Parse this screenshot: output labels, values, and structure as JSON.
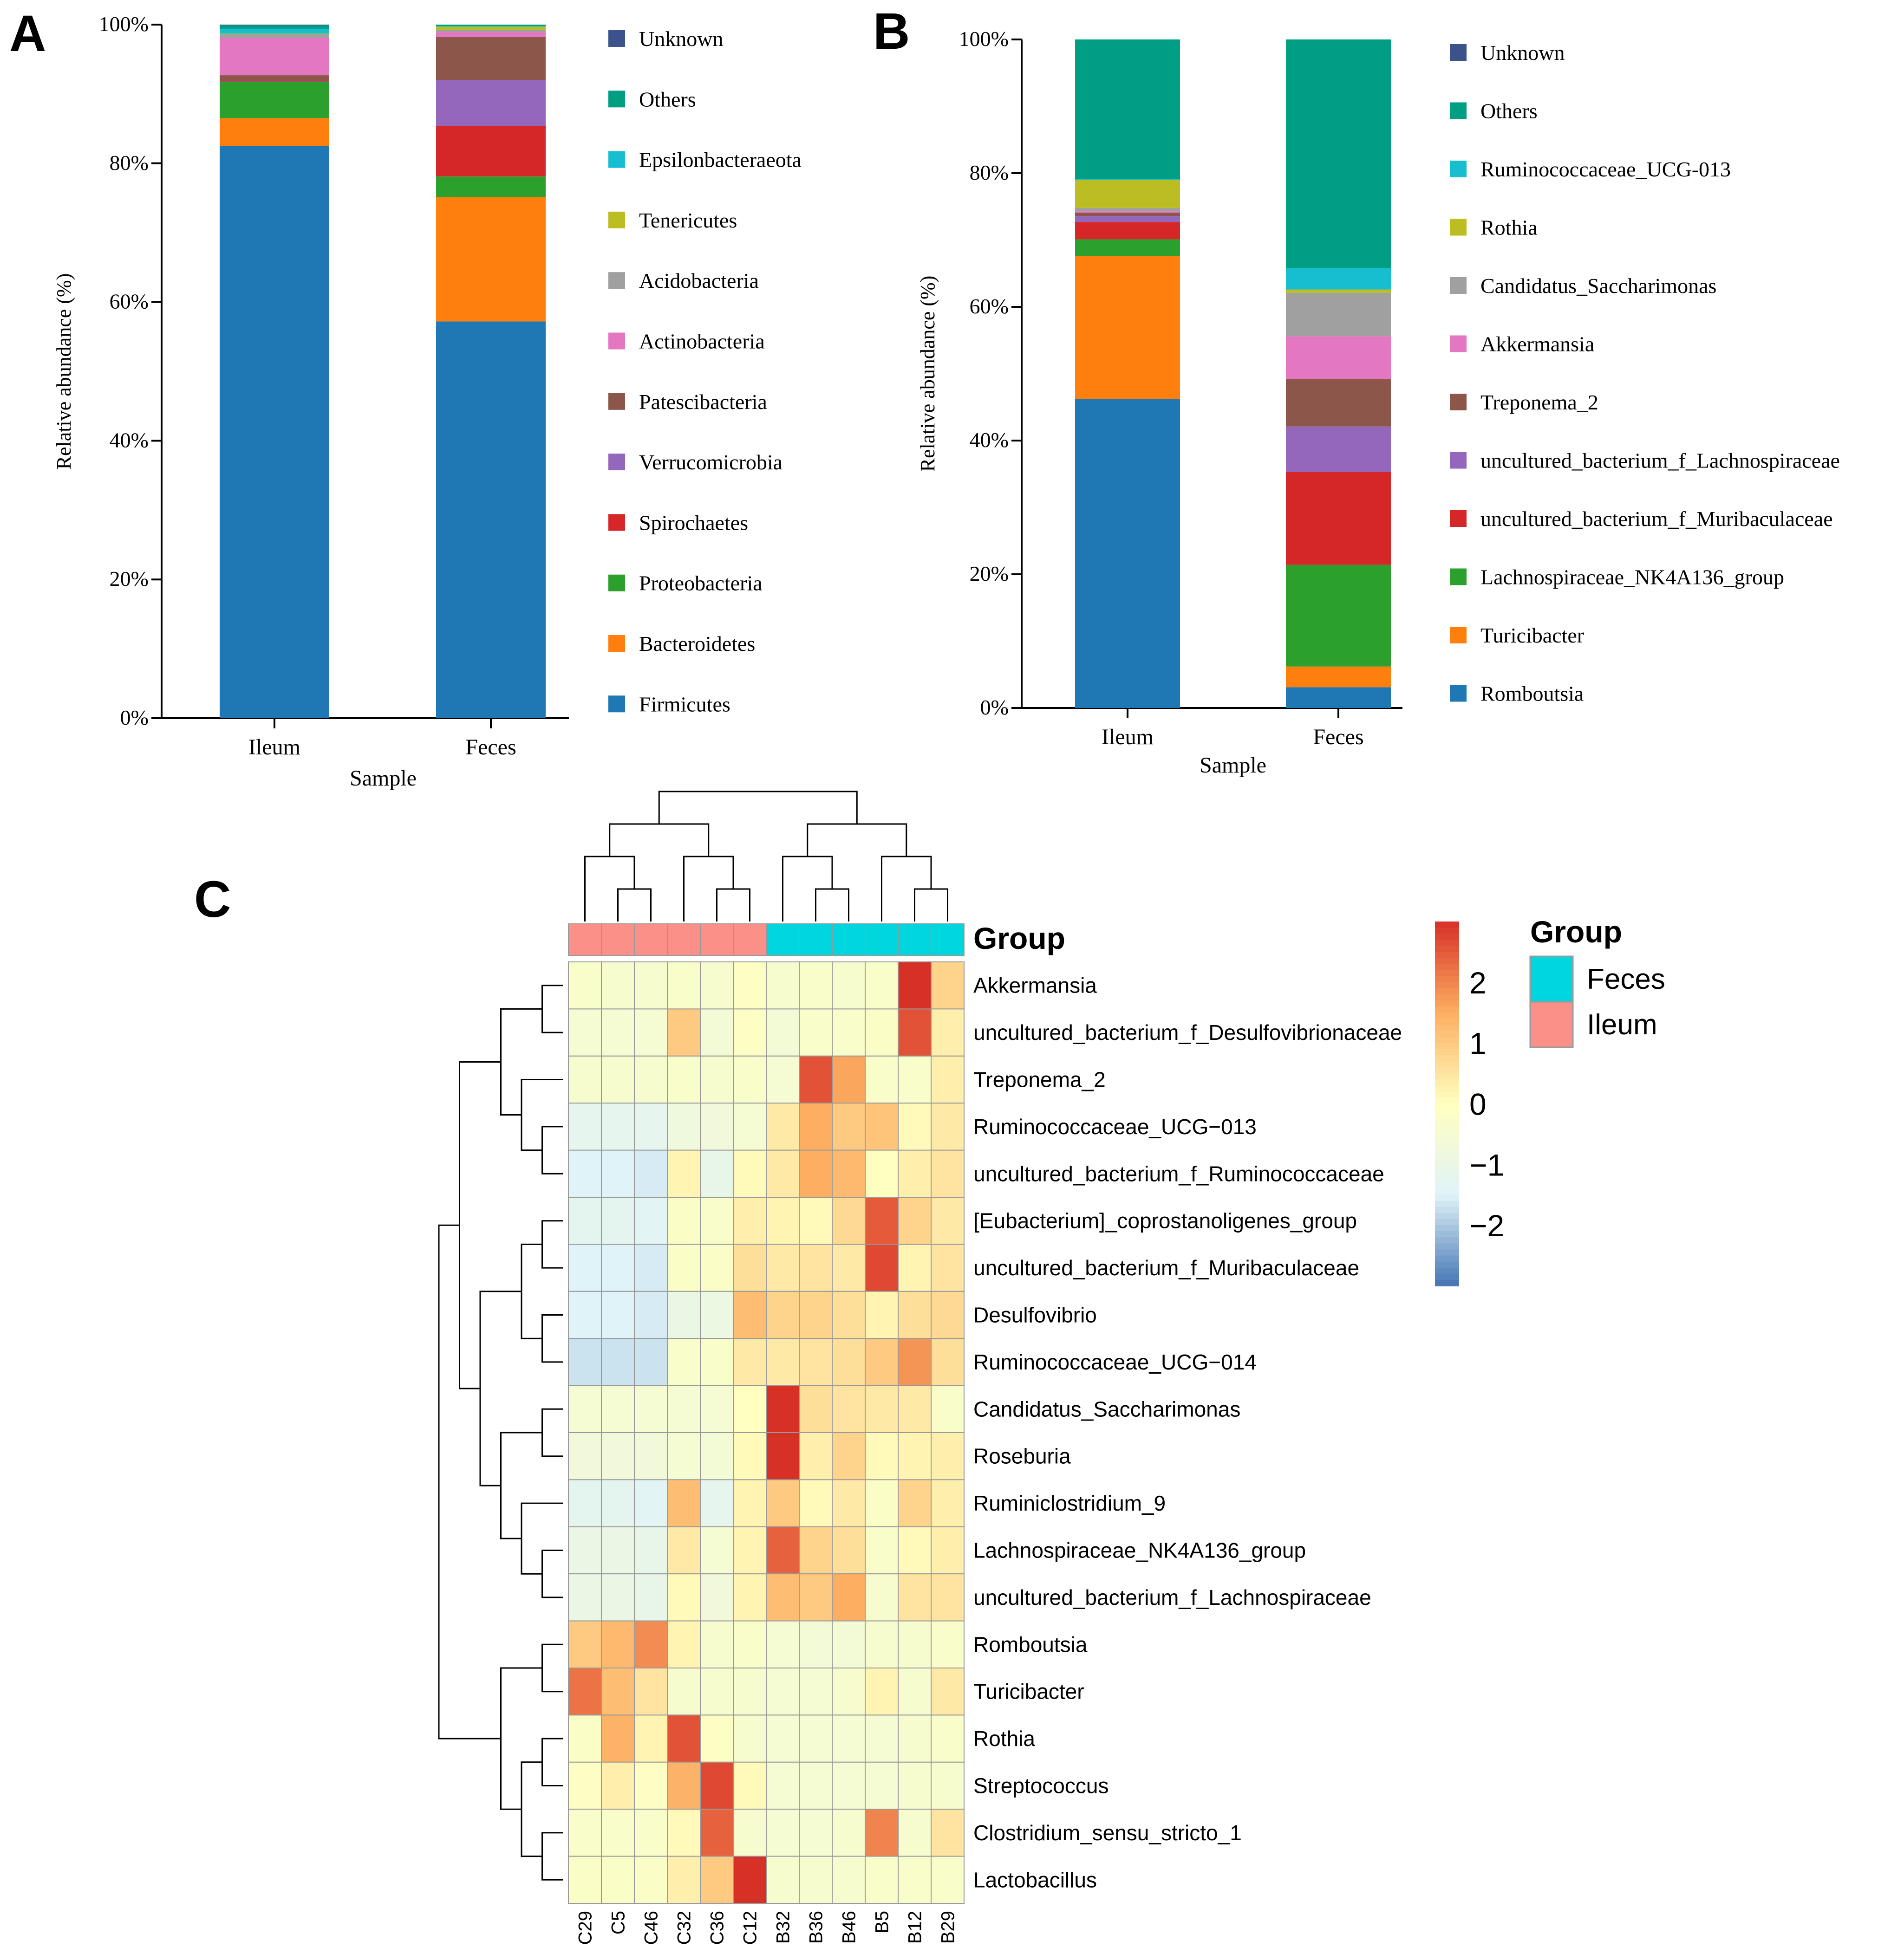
{
  "panels": {
    "a": {
      "letter": "A"
    },
    "b": {
      "letter": "B"
    },
    "c": {
      "letter": "C"
    }
  },
  "chart_data": [
    {
      "panel": "A",
      "type": "bar",
      "stacked": true,
      "xlabel": "Sample",
      "ylabel": "Relative abundance (%)",
      "ylim": [
        0,
        100
      ],
      "yticks": [
        "0%",
        "20%",
        "40%",
        "60%",
        "80%",
        "100%"
      ],
      "categories": [
        "Ileum",
        "Feces"
      ],
      "series": [
        {
          "name": "Firmicutes",
          "color": "#1f77b4",
          "values": [
            82.5,
            57.2
          ]
        },
        {
          "name": "Bacteroidetes",
          "color": "#ff7f0e",
          "values": [
            4.0,
            17.9
          ]
        },
        {
          "name": "Proteobacteria",
          "color": "#2ca02c",
          "values": [
            5.2,
            3.0
          ]
        },
        {
          "name": "Spirochaetes",
          "color": "#d62728",
          "values": [
            0.1,
            7.3
          ]
        },
        {
          "name": "Verrucomicrobia",
          "color": "#9467bd",
          "values": [
            0.1,
            6.6
          ]
        },
        {
          "name": "Patescibacteria",
          "color": "#8c564b",
          "values": [
            0.8,
            6.2
          ]
        },
        {
          "name": "Actinobacteria",
          "color": "#e377c2",
          "values": [
            5.4,
            0.7
          ]
        },
        {
          "name": "Acidobacteria",
          "color": "#a0a0a0",
          "values": [
            0.5,
            0.3
          ]
        },
        {
          "name": "Tenericutes",
          "color": "#bcbd22",
          "values": [
            0.1,
            0.5
          ]
        },
        {
          "name": "Epsilonbacteraeota",
          "color": "#17becf",
          "values": [
            0.7,
            0.1
          ]
        },
        {
          "name": "Others",
          "color": "#009e83",
          "values": [
            0.5,
            0.2
          ]
        },
        {
          "name": "Unknown",
          "color": "#3b528b",
          "values": [
            0.1,
            0.0
          ]
        }
      ]
    },
    {
      "panel": "B",
      "type": "bar",
      "stacked": true,
      "xlabel": "Sample",
      "ylabel": "Relative abundance (%)",
      "ylim": [
        0,
        100
      ],
      "yticks": [
        "0%",
        "20%",
        "40%",
        "60%",
        "80%",
        "100%"
      ],
      "categories": [
        "Ileum",
        "Feces"
      ],
      "series": [
        {
          "name": "Romboutsia",
          "color": "#1f77b4",
          "values": [
            46.2,
            3.1
          ]
        },
        {
          "name": "Turicibacter",
          "color": "#ff7f0e",
          "values": [
            21.4,
            3.1
          ]
        },
        {
          "name": "Lachnospiraceae_NK4A136_group",
          "color": "#2ca02c",
          "values": [
            2.5,
            15.2
          ]
        },
        {
          "name": "uncultured_bacterium_f_Muribaculaceae",
          "color": "#d62728",
          "values": [
            2.6,
            13.9
          ]
        },
        {
          "name": "uncultured_bacterium_f_Lachnospiraceae",
          "color": "#9467bd",
          "values": [
            0.9,
            6.8
          ]
        },
        {
          "name": "Treponema_2",
          "color": "#8c564b",
          "values": [
            0.5,
            7.1
          ]
        },
        {
          "name": "Akkermansia",
          "color": "#e377c2",
          "values": [
            0.2,
            6.4
          ]
        },
        {
          "name": "Candidatus_Saccharimonas",
          "color": "#a0a0a0",
          "values": [
            0.5,
            6.5
          ]
        },
        {
          "name": "Rothia",
          "color": "#bcbd22",
          "values": [
            4.2,
            0.5
          ]
        },
        {
          "name": "Ruminococcaceae_UCG-013",
          "color": "#17becf",
          "values": [
            0.1,
            3.2
          ]
        },
        {
          "name": "Others",
          "color": "#009e83",
          "values": [
            20.9,
            34.2
          ]
        },
        {
          "name": "Unknown",
          "color": "#3b528b",
          "values": [
            0.0,
            0.0
          ]
        }
      ]
    },
    {
      "panel": "C",
      "type": "heatmap",
      "columns": [
        "C29",
        "C5",
        "C46",
        "C32",
        "C36",
        "C12",
        "B32",
        "B36",
        "B46",
        "B5",
        "B12",
        "B29"
      ],
      "column_groups": [
        "Ileum",
        "Ileum",
        "Ileum",
        "Ileum",
        "Ileum",
        "Ileum",
        "Feces",
        "Feces",
        "Feces",
        "Feces",
        "Feces",
        "Feces"
      ],
      "rows": [
        "Akkermansia",
        "uncultured_bacterium_f_Desulfovibrionaceae",
        "Treponema_2",
        "Ruminococcaceae_UCG−013",
        "uncultured_bacterium_f_Ruminococcaceae",
        "[Eubacterium]_coprostanoligenes_group",
        "uncultured_bacterium_f_Muribaculaceae",
        "Desulfovibrio",
        "Ruminococcaceae_UCG−014",
        "Candidatus_Saccharimonas",
        "Roseburia",
        "Ruminiclostridium_9",
        "Lachnospiraceae_NK4A136_group",
        "uncultured_bacterium_f_Lachnospiraceae",
        "Romboutsia",
        "Turicibacter",
        "Rothia",
        "Streptococcus",
        "Clostridium_sensu_stricto_1",
        "Lactobacillus"
      ],
      "values": [
        [
          -0.3,
          -0.4,
          -0.4,
          -0.3,
          -0.4,
          -0.1,
          -0.4,
          -0.3,
          -0.4,
          -0.3,
          3.0,
          0.8
        ],
        [
          -0.5,
          -0.5,
          -0.5,
          1.0,
          -0.6,
          -0.1,
          -0.6,
          -0.3,
          -0.3,
          -0.2,
          2.6,
          0.3
        ],
        [
          -0.4,
          -0.4,
          -0.4,
          -0.3,
          -0.4,
          -0.3,
          -0.5,
          2.6,
          1.6,
          -0.3,
          -0.3,
          0.3
        ],
        [
          -1.2,
          -1.2,
          -1.2,
          -0.8,
          -0.7,
          -0.5,
          0.4,
          1.5,
          1.0,
          1.1,
          0.1,
          0.4
        ],
        [
          -1.5,
          -1.5,
          -1.6,
          0.2,
          -1.1,
          0.1,
          0.4,
          1.5,
          1.3,
          0.0,
          0.3,
          0.5
        ],
        [
          -1.3,
          -1.3,
          -1.4,
          -0.2,
          -0.3,
          0.3,
          0.2,
          0.1,
          0.7,
          2.5,
          0.8,
          0.4
        ],
        [
          -1.5,
          -1.5,
          -1.6,
          -0.2,
          -0.2,
          0.6,
          0.4,
          0.5,
          0.4,
          2.7,
          0.2,
          0.5
        ],
        [
          -1.5,
          -1.5,
          -1.6,
          -1.0,
          -0.9,
          1.2,
          0.8,
          0.8,
          0.6,
          0.2,
          0.6,
          0.7
        ],
        [
          -1.7,
          -1.7,
          -1.7,
          -0.3,
          -0.3,
          0.4,
          0.4,
          0.5,
          0.6,
          1.0,
          1.8,
          0.6
        ],
        [
          -0.5,
          -0.5,
          -0.5,
          -0.5,
          -0.5,
          0.0,
          3.0,
          0.6,
          0.5,
          0.4,
          0.4,
          -0.3
        ],
        [
          -0.7,
          -0.7,
          -0.7,
          -0.5,
          -0.6,
          0.1,
          3.0,
          0.3,
          0.8,
          0.1,
          0.2,
          0.3
        ],
        [
          -1.3,
          -1.3,
          -1.4,
          1.2,
          -1.2,
          0.2,
          1.0,
          0.1,
          0.4,
          -0.2,
          0.8,
          0.3
        ],
        [
          -1.0,
          -1.0,
          -1.1,
          0.4,
          -0.5,
          0.2,
          2.4,
          0.8,
          0.6,
          -0.3,
          0.1,
          0.3
        ],
        [
          -1.0,
          -1.0,
          -1.1,
          0.1,
          -0.7,
          0.2,
          1.2,
          1.0,
          1.5,
          -0.4,
          0.5,
          0.5
        ],
        [
          1.0,
          1.3,
          1.9,
          0.2,
          -0.4,
          -0.3,
          -0.5,
          -0.6,
          -0.6,
          -0.4,
          -0.4,
          -0.3
        ],
        [
          2.2,
          1.2,
          0.5,
          -0.4,
          -0.4,
          -0.4,
          -0.5,
          -0.5,
          -0.4,
          0.2,
          -0.4,
          0.4
        ],
        [
          -0.2,
          1.4,
          0.2,
          2.6,
          -0.1,
          -0.4,
          -0.5,
          -0.5,
          -0.5,
          -0.5,
          -0.4,
          -0.3
        ],
        [
          -0.1,
          0.3,
          -0.1,
          1.4,
          2.7,
          0.1,
          -0.5,
          -0.5,
          -0.5,
          -0.5,
          -0.4,
          -0.4
        ],
        [
          -0.3,
          -0.3,
          -0.3,
          0.1,
          2.4,
          -0.4,
          -0.5,
          -0.5,
          -0.4,
          2.0,
          -0.4,
          0.5
        ],
        [
          -0.2,
          -0.2,
          -0.2,
          0.3,
          1.0,
          3.0,
          -0.4,
          -0.4,
          -0.4,
          -0.3,
          -0.3,
          -0.3
        ]
      ],
      "colorbar": {
        "ticks": [
          "2",
          "1",
          "0",
          "−1",
          "−2"
        ],
        "values": [
          2,
          1,
          0,
          -1,
          -2
        ],
        "range": [
          -3,
          3
        ],
        "colors": [
          "#4575b4",
          "#e0f3f8",
          "#ffffbf",
          "#fdae61",
          "#d73027"
        ]
      },
      "legend": {
        "title": "Group",
        "entries": [
          {
            "name": "Feces",
            "color": "#00d6de"
          },
          {
            "name": "Ileum",
            "color": "#fb9088"
          }
        ]
      },
      "column_tree": [
        [
          [
            [
              0,
              [
                1,
                2
              ]
            ],
            [
              3,
              [
                4,
                5
              ]
            ]
          ],
          [
            [
              6,
              [
                7,
                8
              ]
            ],
            [
              9,
              [
                10,
                11
              ]
            ]
          ]
        ]
      ],
      "row_tree": [
        [
          [
            [
              [
                0,
                1
              ],
              [
                2,
                [
                  3,
                  4
                ]
              ]
            ],
            [
              [
                [
                  5,
                  6
                ],
                [
                  7,
                  8
                ]
              ],
              [
                [
                  9,
                  10
                ],
                [
                  11,
                  [
                    12,
                    13
                  ]
                ]
              ]
            ]
          ],
          [
            [
              14,
              15
            ],
            [
              [
                16,
                17
              ],
              [
                18,
                19
              ]
            ]
          ]
        ]
      ]
    }
  ]
}
